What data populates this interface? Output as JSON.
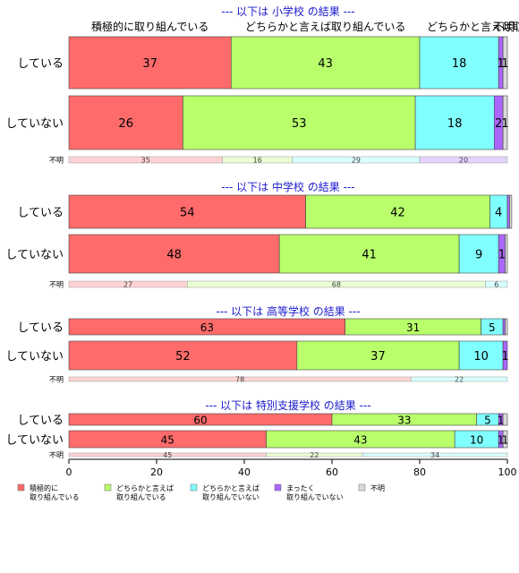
{
  "chart_data": {
    "type": "bar",
    "orientation": "horizontal",
    "stacked": true,
    "percent": true,
    "xlim": [
      0,
      100
    ],
    "x_ticks": [
      0,
      20,
      40,
      60,
      80,
      100
    ],
    "series": [
      {
        "name": "積極的に\n取り組んでいる",
        "top_label": "積極的に取り組んでいる",
        "color": "#ff6b6b"
      },
      {
        "name": "どちらかと言えば\n取り組んでいる",
        "top_label": "どちらかと言えば取り組んでいる",
        "color": "#b8ff6b"
      },
      {
        "name": "どちらかと言えば\n取り組んでいない",
        "top_label": "どちらかと言えば取り組",
        "color": "#80ffff"
      },
      {
        "name": "まったく\n取り組んでいない",
        "top_label": "",
        "color": "#aa66ff"
      },
      {
        "name": "不明",
        "top_label": "不明",
        "color": "#d9d9d9"
      }
    ],
    "panels": [
      {
        "title": "--- 以下は 小学校 の結果 ---",
        "rows": [
          {
            "label": "している",
            "values": [
              37,
              43,
              18,
              1,
              1
            ],
            "labels": [
              "37",
              "43",
              "18",
              "1",
              "1"
            ]
          },
          {
            "label": "していない",
            "values": [
              26,
              53,
              18,
              2,
              1
            ],
            "labels": [
              "26",
              "53",
              "18",
              "2",
              "1"
            ]
          }
        ],
        "unknown": {
          "label": "不明",
          "values": [
            35,
            16,
            29,
            20,
            0
          ],
          "labels": [
            "35",
            "16",
            "29",
            "20",
            ""
          ]
        }
      },
      {
        "title": "--- 以下は 中学校 の結果 ---",
        "rows": [
          {
            "label": "している",
            "values": [
              54,
              42,
              4,
              0.5,
              0.5
            ],
            "labels": [
              "54",
              "42",
              "4",
              "",
              ""
            ]
          },
          {
            "label": "していない",
            "values": [
              48,
              41,
              9,
              1.5,
              0.5
            ],
            "labels": [
              "48",
              "41",
              "9",
              "1",
              ""
            ]
          }
        ],
        "unknown": {
          "label": "不明",
          "values": [
            27,
            68,
            6,
            0,
            0
          ],
          "labels": [
            "27",
            "68",
            "6",
            "",
            ""
          ]
        }
      },
      {
        "title": "--- 以下は 高等学校 の結果 ---",
        "rows": [
          {
            "label": "している",
            "values": [
              63,
              31,
              5,
              0.5,
              0.5
            ],
            "labels": [
              "63",
              "31",
              "5",
              "",
              ""
            ]
          },
          {
            "label": "していない",
            "values": [
              52,
              37,
              10,
              1,
              0
            ],
            "labels": [
              "52",
              "37",
              "10",
              "1",
              ""
            ]
          }
        ],
        "unknown": {
          "label": "不明",
          "values": [
            78,
            0,
            22,
            0,
            0
          ],
          "labels": [
            "78",
            "",
            "22",
            "",
            ""
          ]
        }
      },
      {
        "title": "--- 以下は 特別支援学校 の結果 ---",
        "rows": [
          {
            "label": "している",
            "values": [
              60,
              33,
              5,
              1,
              1
            ],
            "labels": [
              "60",
              "33",
              "5",
              "1",
              ""
            ]
          },
          {
            "label": "していない",
            "values": [
              45,
              43,
              10,
              1,
              1
            ],
            "labels": [
              "45",
              "43",
              "10",
              "1",
              "1"
            ]
          }
        ],
        "unknown": {
          "label": "不明",
          "values": [
            45,
            22,
            34,
            0,
            0
          ],
          "labels": [
            "45",
            "22",
            "34",
            "",
            ""
          ]
        }
      }
    ],
    "legend_position": "bottom-left"
  }
}
